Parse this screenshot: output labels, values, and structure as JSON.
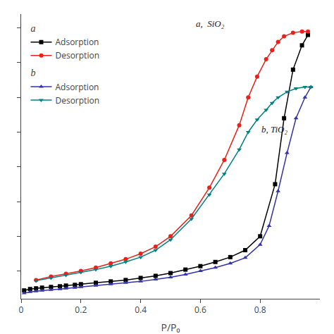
{
  "chart_data": {
    "type": "line",
    "xlabel": "P/P₀",
    "annotations": [
      "a,  SiO₂",
      "b, TiO₂"
    ],
    "xlim": [
      0,
      1.0
    ],
    "xticks": [
      0,
      0.2,
      0.4,
      0.6,
      0.8
    ],
    "ylim": [
      10,
      420
    ],
    "tick_labels": "x",
    "grid": false,
    "legend": "upper left",
    "series": [
      {
        "name": "Adsorption",
        "group": "a",
        "color": "#000000",
        "marker": "square",
        "line_style": "solid",
        "x": [
          0.01,
          0.03,
          0.05,
          0.07,
          0.1,
          0.13,
          0.15,
          0.18,
          0.2,
          0.25,
          0.3,
          0.35,
          0.4,
          0.45,
          0.5,
          0.55,
          0.6,
          0.65,
          0.7,
          0.75,
          0.8,
          0.85,
          0.88,
          0.91,
          0.94,
          0.96
        ],
        "values": [
          22,
          24,
          25,
          26,
          27,
          28,
          29,
          30,
          31,
          33,
          35,
          37,
          40,
          43,
          47,
          52,
          57,
          63,
          70,
          80,
          100,
          175,
          270,
          340,
          375,
          390
        ]
      },
      {
        "name": "Desorption",
        "group": "a",
        "color": "#e8221a",
        "marker": "circle",
        "line_style": "solid",
        "x": [
          0.96,
          0.94,
          0.91,
          0.88,
          0.86,
          0.84,
          0.82,
          0.79,
          0.76,
          0.73,
          0.68,
          0.63,
          0.57,
          0.5,
          0.45,
          0.4,
          0.35,
          0.3,
          0.25,
          0.2,
          0.15,
          0.1,
          0.05
        ],
        "values": [
          395,
          395,
          393,
          388,
          380,
          368,
          355,
          330,
          300,
          260,
          210,
          170,
          130,
          100,
          85,
          75,
          67,
          61,
          55,
          50,
          46,
          42,
          37
        ]
      },
      {
        "name": "Adsorption",
        "group": "b",
        "color": "#3232aa",
        "marker": "triangle-up",
        "line_style": "solid",
        "x": [
          0.01,
          0.03,
          0.05,
          0.07,
          0.1,
          0.13,
          0.15,
          0.18,
          0.2,
          0.25,
          0.3,
          0.35,
          0.4,
          0.45,
          0.5,
          0.55,
          0.6,
          0.65,
          0.7,
          0.75,
          0.8,
          0.83,
          0.86,
          0.89,
          0.92,
          0.95,
          0.97
        ],
        "values": [
          18,
          20,
          21,
          22,
          23,
          24,
          25,
          26,
          27,
          29,
          31,
          33,
          35,
          38,
          41,
          45,
          50,
          55,
          61,
          69,
          88,
          115,
          165,
          220,
          270,
          300,
          315
        ]
      },
      {
        "name": "Desorption",
        "group": "b",
        "color": "#008080",
        "marker": "triangle-down",
        "line_style": "solid",
        "x": [
          0.97,
          0.95,
          0.92,
          0.89,
          0.86,
          0.84,
          0.82,
          0.79,
          0.76,
          0.73,
          0.68,
          0.63,
          0.57,
          0.5,
          0.45,
          0.4,
          0.35,
          0.3,
          0.25,
          0.2,
          0.15,
          0.1,
          0.05
        ],
        "values": [
          315,
          315,
          313,
          308,
          300,
          292,
          282,
          268,
          250,
          225,
          190,
          160,
          125,
          95,
          80,
          70,
          63,
          57,
          52,
          48,
          44,
          40,
          36
        ]
      }
    ]
  }
}
